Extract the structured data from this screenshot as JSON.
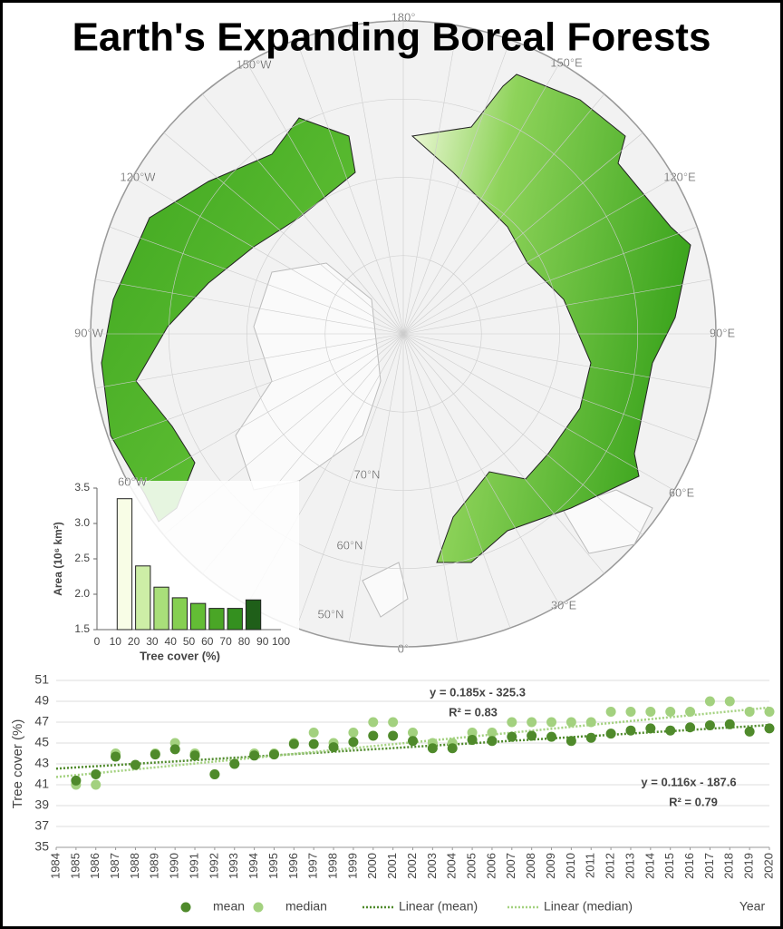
{
  "title": "Earth's Expanding Boreal Forests",
  "map": {
    "labels": [
      "180°",
      "150°W",
      "150°E",
      "120°W",
      "120°E",
      "90°W",
      "90°E",
      "60°W",
      "60°E",
      "70°N",
      "60°N",
      "50°N",
      "30°E",
      "0°"
    ]
  },
  "chart_data": [
    {
      "type": "histogram",
      "bins": [
        10,
        20,
        30,
        40,
        50,
        60,
        70,
        80,
        90
      ],
      "values": [
        3.35,
        2.4,
        2.1,
        1.95,
        1.87,
        1.8,
        1.8,
        1.92
      ],
      "colors": [
        "#f8fde6",
        "#cdeea6",
        "#a9df7a",
        "#86cf52",
        "#63bd35",
        "#4aa626",
        "#34901f",
        "#1f5f19"
      ],
      "xlim": [
        0,
        100
      ],
      "xticks": [
        0,
        10,
        20,
        30,
        40,
        50,
        60,
        70,
        80,
        90,
        100
      ],
      "ylim": [
        1.5,
        3.5
      ],
      "yticks": [
        1.5,
        {
          "value": 2,
          "label": "2.0"
        },
        2.5,
        {
          "value": 3,
          "label": "3.0"
        },
        3.5
      ],
      "xlabel": "Tree cover (%)",
      "ylabel": "Area (10⁶ km²)"
    },
    {
      "type": "scatter",
      "x": [
        1985,
        1986,
        1987,
        1988,
        1989,
        1990,
        1991,
        1992,
        1993,
        1994,
        1995,
        1996,
        1997,
        1998,
        1999,
        2000,
        2001,
        2002,
        2003,
        2004,
        2005,
        2006,
        2007,
        2008,
        2009,
        2010,
        2011,
        2012,
        2013,
        2014,
        2015,
        2016,
        2017,
        2018,
        2019,
        2020
      ],
      "series": [
        {
          "name": "mean",
          "color": "#4f8a2b",
          "values": [
            41.4,
            42.0,
            43.7,
            42.9,
            43.9,
            44.4,
            43.8,
            42.0,
            43.0,
            43.8,
            43.9,
            44.9,
            44.9,
            44.6,
            45.1,
            45.7,
            45.7,
            45.2,
            44.5,
            44.5,
            45.3,
            45.2,
            45.6,
            45.7,
            45.6,
            45.2,
            45.5,
            45.9,
            46.2,
            46.4,
            46.2,
            46.5,
            46.7,
            46.8,
            46.1,
            46.4
          ]
        },
        {
          "name": "median",
          "color": "#a3d17f",
          "values": [
            41.0,
            41.0,
            44.0,
            42.9,
            44.0,
            45.0,
            44.0,
            42.0,
            43.0,
            44.0,
            44.0,
            45.0,
            46.0,
            45.0,
            46.0,
            47.0,
            47.0,
            46.0,
            45.0,
            45.0,
            46.0,
            46.0,
            47.0,
            47.0,
            47.0,
            47.0,
            47.0,
            48.0,
            48.0,
            48.0,
            48.0,
            48.0,
            49.0,
            49.0,
            48.0,
            48.0
          ]
        }
      ],
      "trendlines": [
        {
          "name": "Linear (mean)",
          "color": "#4f8a2b",
          "slope": 0.116,
          "intercept": -187.6,
          "equation": "y = 0.116x - 187.6",
          "r2": "R² = 0.79"
        },
        {
          "name": "Linear (median)",
          "color": "#a3d17f",
          "slope": 0.185,
          "intercept": -325.3,
          "equation": "y = 0.185x - 325.3",
          "r2": "R² = 0.83"
        }
      ],
      "xlim": [
        1984,
        2020
      ],
      "xticks": [
        1984,
        1985,
        1986,
        1987,
        1988,
        1989,
        1990,
        1991,
        1992,
        1993,
        1994,
        1995,
        1996,
        1997,
        1998,
        1999,
        2000,
        2001,
        2002,
        2003,
        2004,
        2005,
        2006,
        2007,
        2008,
        2009,
        2010,
        2011,
        2012,
        2013,
        2014,
        2015,
        2016,
        2017,
        2018,
        2019,
        2020
      ],
      "ylim": [
        35,
        51
      ],
      "yticks": [
        35,
        37,
        39,
        41,
        43,
        45,
        47,
        49,
        51
      ],
      "grid": true,
      "xlabel": "Year",
      "ylabel": "Tree cover (%)"
    }
  ]
}
